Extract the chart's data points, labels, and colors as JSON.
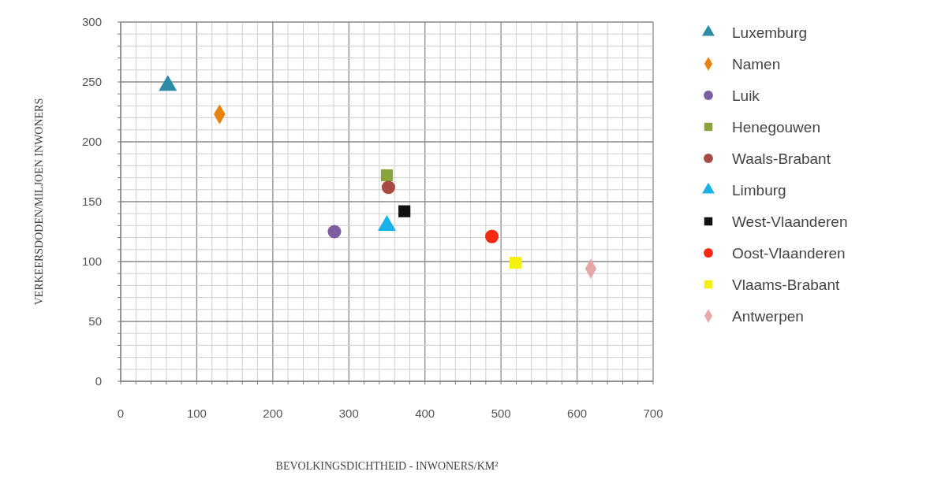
{
  "chart_data": {
    "type": "scatter",
    "xlabel": "BEVOLKINGSDICHTHEID - INWONERS/KM²",
    "ylabel": "VERKEERSDODEN/MILJOEN INWONERS",
    "xlim": [
      0,
      700
    ],
    "ylim": [
      0,
      300
    ],
    "xticks": [
      0,
      {
        "value": 20,
        "label": null
      },
      {
        "value": 40,
        "label": null
      },
      {
        "value": 60,
        "label": null
      },
      {
        "value": 80,
        "label": null
      },
      100,
      {
        "value": 120,
        "label": null
      },
      {
        "value": 140,
        "label": null
      },
      {
        "value": 160,
        "label": null
      },
      {
        "value": 180,
        "label": null
      },
      200,
      {
        "value": 220,
        "label": null
      },
      {
        "value": 240,
        "label": null
      },
      {
        "value": 260,
        "label": null
      },
      {
        "value": 280,
        "label": null
      },
      300,
      {
        "value": 320,
        "label": null
      },
      {
        "value": 340,
        "label": null
      },
      {
        "value": 360,
        "label": null
      },
      {
        "value": 380,
        "label": null
      },
      400,
      {
        "value": 420,
        "label": null
      },
      {
        "value": 440,
        "label": null
      },
      {
        "value": 460,
        "label": null
      },
      {
        "value": 480,
        "label": null
      },
      500,
      {
        "value": 520,
        "label": null
      },
      {
        "value": 540,
        "label": null
      },
      {
        "value": 560,
        "label": null
      },
      {
        "value": 580,
        "label": null
      },
      600,
      {
        "value": 620,
        "label": null
      },
      {
        "value": 640,
        "label": null
      },
      {
        "value": 660,
        "label": null
      },
      {
        "value": 680,
        "label": null
      },
      700
    ],
    "yticks": [
      0,
      {
        "value": 10,
        "label": null
      },
      {
        "value": 20,
        "label": null
      },
      {
        "value": 30,
        "label": null
      },
      {
        "value": 40,
        "label": null
      },
      50,
      {
        "value": 60,
        "label": null
      },
      {
        "value": 70,
        "label": null
      },
      {
        "value": 80,
        "label": null
      },
      {
        "value": 90,
        "label": null
      },
      100,
      {
        "value": 110,
        "label": null
      },
      {
        "value": 120,
        "label": null
      },
      {
        "value": 130,
        "label": null
      },
      {
        "value": 140,
        "label": null
      },
      150,
      {
        "value": 160,
        "label": null
      },
      {
        "value": 170,
        "label": null
      },
      {
        "value": 180,
        "label": null
      },
      {
        "value": 190,
        "label": null
      },
      200,
      {
        "value": 210,
        "label": null
      },
      {
        "value": 220,
        "label": null
      },
      {
        "value": 230,
        "label": null
      },
      {
        "value": 240,
        "label": null
      },
      250,
      {
        "value": 260,
        "label": null
      },
      {
        "value": 270,
        "label": null
      },
      {
        "value": 280,
        "label": null
      },
      {
        "value": 290,
        "label": null
      },
      300
    ],
    "grid": true,
    "legend": "right",
    "series": [
      {
        "name": "Luxemburg",
        "color": "#2e8ba6",
        "marker": "triangle",
        "x": [
          62
        ],
        "values": [
          247
        ]
      },
      {
        "name": "Namen",
        "color": "#e8820c",
        "marker": "diamond",
        "x": [
          130
        ],
        "values": [
          223
        ]
      },
      {
        "name": "Luik",
        "color": "#7d5ea0",
        "marker": "circle",
        "x": [
          281
        ],
        "values": [
          125
        ]
      },
      {
        "name": "Henegouwen",
        "color": "#8aa43c",
        "marker": "square",
        "x": [
          350
        ],
        "values": [
          172
        ]
      },
      {
        "name": "Waals-Brabant",
        "color": "#a84a44",
        "marker": "circle",
        "x": [
          352
        ],
        "values": [
          162
        ]
      },
      {
        "name": "Limburg",
        "color": "#1ab0e8",
        "marker": "triangle",
        "x": [
          350
        ],
        "values": [
          130
        ]
      },
      {
        "name": "West-Vlaanderen",
        "color": "#111111",
        "marker": "square",
        "x": [
          373
        ],
        "values": [
          142
        ]
      },
      {
        "name": "Oost-Vlaanderen",
        "color": "#f52a10",
        "marker": "circle",
        "x": [
          488
        ],
        "values": [
          121
        ]
      },
      {
        "name": "Vlaams-Brabant",
        "color": "#f5f010",
        "marker": "square",
        "x": [
          519
        ],
        "values": [
          99
        ]
      },
      {
        "name": "Antwerpen",
        "color": "#e8a8a8",
        "marker": "diamond",
        "x": [
          618
        ],
        "values": [
          94
        ]
      }
    ]
  }
}
